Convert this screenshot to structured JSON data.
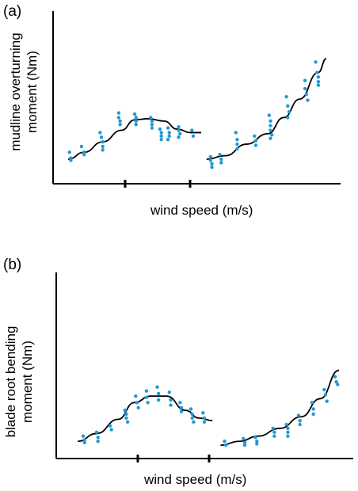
{
  "chart_data": [
    {
      "type": "scatter",
      "panel_label": "(a)",
      "ylabel_lines": [
        "mudline overturning",
        "moment (Nm)"
      ],
      "xlabel": "wind speed (m/s)",
      "axis_ticks": "unlabeled",
      "xlim": [
        0,
        10
      ],
      "ylim": [
        0,
        10
      ],
      "colors": {
        "points": "#1f9ad6",
        "curve": "#000000",
        "axes": "#000000"
      },
      "series": [
        {
          "segment": "below rated",
          "curve_x": [
            0.3,
            0.9,
            1.6,
            2.3,
            2.8,
            3.3,
            3.9,
            4.4,
            4.9,
            5.3
          ],
          "curve_y": [
            1.3,
            1.9,
            2.8,
            3.8,
            4.7,
            4.8,
            4.6,
            3.9,
            3.6,
            3.6
          ],
          "points": [
            [
              0.35,
              1.9
            ],
            [
              0.4,
              1.4
            ],
            [
              0.4,
              1.2
            ],
            [
              0.8,
              2.4
            ],
            [
              0.9,
              1.9
            ],
            [
              0.9,
              1.7
            ],
            [
              1.5,
              3.6
            ],
            [
              1.55,
              3.2
            ],
            [
              1.6,
              2.8
            ],
            [
              1.6,
              2.4
            ],
            [
              1.6,
              2.1
            ],
            [
              2.2,
              5.3
            ],
            [
              2.2,
              4.9
            ],
            [
              2.25,
              4.6
            ],
            [
              2.25,
              4.3
            ],
            [
              2.8,
              5.2
            ],
            [
              2.85,
              4.9
            ],
            [
              2.85,
              4.6
            ],
            [
              2.85,
              4.3
            ],
            [
              3.4,
              4.9
            ],
            [
              3.45,
              4.6
            ],
            [
              3.45,
              4.3
            ],
            [
              3.45,
              4.0
            ],
            [
              3.75,
              3.9
            ],
            [
              3.8,
              3.6
            ],
            [
              3.8,
              3.3
            ],
            [
              3.8,
              3.0
            ],
            [
              4.05,
              4.0
            ],
            [
              4.1,
              3.6
            ],
            [
              4.1,
              3.3
            ],
            [
              4.05,
              3.0
            ],
            [
              4.45,
              4.1
            ],
            [
              4.45,
              3.8
            ],
            [
              4.5,
              3.5
            ],
            [
              4.45,
              3.2
            ],
            [
              4.95,
              3.8
            ],
            [
              5.0,
              3.3
            ]
          ]
        },
        {
          "segment": "above rated",
          "curve_x": [
            5.5,
            6.2,
            7.0,
            7.8,
            8.4,
            9.0,
            9.7,
            10.0
          ],
          "curve_y": [
            1.3,
            1.6,
            2.6,
            3.5,
            4.9,
            6.5,
            8.8,
            10.0
          ],
          "points": [
            [
              5.65,
              1.5
            ],
            [
              5.65,
              1.2
            ],
            [
              5.7,
              0.9
            ],
            [
              5.7,
              0.6
            ],
            [
              6.0,
              1.7
            ],
            [
              6.05,
              1.3
            ],
            [
              6.05,
              1.0
            ],
            [
              6.6,
              3.6
            ],
            [
              6.65,
              3.0
            ],
            [
              6.65,
              2.6
            ],
            [
              6.65,
              2.2
            ],
            [
              7.3,
              3.3
            ],
            [
              7.35,
              2.9
            ],
            [
              7.35,
              2.5
            ],
            [
              7.85,
              5.1
            ],
            [
              7.9,
              4.6
            ],
            [
              7.9,
              4.2
            ],
            [
              7.9,
              3.8
            ],
            [
              7.95,
              3.4
            ],
            [
              7.9,
              3.1
            ],
            [
              8.5,
              6.7
            ],
            [
              8.55,
              5.9
            ],
            [
              8.6,
              5.4
            ],
            [
              8.55,
              4.9
            ],
            [
              9.2,
              8.1
            ],
            [
              9.2,
              7.4
            ],
            [
              9.25,
              6.9
            ],
            [
              9.3,
              6.4
            ],
            [
              9.6,
              9.7
            ],
            [
              9.65,
              8.8
            ],
            [
              9.7,
              8.4
            ],
            [
              9.7,
              8.0
            ],
            [
              9.7,
              7.7
            ]
          ]
        }
      ]
    },
    {
      "type": "scatter",
      "panel_label": "(b)",
      "ylabel_lines": [
        "blade root bending",
        "moment (Nm)"
      ],
      "xlabel": "wind speed (m/s)",
      "axis_ticks": "unlabeled",
      "xlim": [
        0,
        10
      ],
      "ylim": [
        0,
        10
      ],
      "colors": {
        "points": "#1f9ad6",
        "curve": "#000000",
        "axes": "#000000"
      },
      "series": [
        {
          "segment": "below rated",
          "curve_x": [
            0.3,
            1.0,
            1.8,
            2.4,
            3.0,
            3.6,
            4.3,
            4.8,
            5.3
          ],
          "curve_y": [
            0.6,
            1.2,
            2.3,
            3.6,
            4.1,
            4.1,
            3.0,
            2.4,
            2.2
          ],
          "points": [
            [
              0.5,
              1.0
            ],
            [
              0.55,
              0.7
            ],
            [
              0.55,
              0.5
            ],
            [
              1.0,
              1.3
            ],
            [
              1.05,
              0.9
            ],
            [
              1.05,
              0.6
            ],
            [
              1.5,
              1.8
            ],
            [
              1.55,
              1.5
            ],
            [
              2.05,
              3.0
            ],
            [
              2.1,
              2.7
            ],
            [
              2.1,
              2.4
            ],
            [
              2.15,
              2.1
            ],
            [
              2.45,
              4.1
            ],
            [
              2.5,
              3.6
            ],
            [
              2.55,
              3.2
            ],
            [
              2.85,
              4.5
            ],
            [
              2.85,
              4.0
            ],
            [
              2.9,
              3.6
            ],
            [
              3.25,
              4.8
            ],
            [
              3.3,
              4.3
            ],
            [
              3.3,
              3.8
            ],
            [
              3.7,
              4.4
            ],
            [
              3.75,
              3.8
            ],
            [
              3.75,
              3.4
            ],
            [
              4.1,
              3.6
            ],
            [
              4.15,
              3.2
            ],
            [
              4.15,
              2.9
            ],
            [
              4.5,
              3.1
            ],
            [
              4.55,
              2.7
            ],
            [
              4.55,
              2.4
            ],
            [
              4.6,
              2.1
            ],
            [
              4.95,
              2.8
            ],
            [
              5.0,
              2.4
            ],
            [
              5.0,
              2.1
            ]
          ]
        },
        {
          "segment": "above rated",
          "curve_x": [
            5.6,
            6.3,
            7.0,
            7.8,
            8.6,
            9.3,
            10.0
          ],
          "curve_y": [
            0.3,
            0.6,
            1.0,
            1.6,
            2.5,
            3.9,
            6.1
          ],
          "points": [
            [
              5.75,
              0.6
            ],
            [
              5.8,
              0.3
            ],
            [
              6.45,
              0.8
            ],
            [
              6.5,
              0.5
            ],
            [
              6.5,
              0.3
            ],
            [
              6.9,
              0.9
            ],
            [
              6.95,
              0.6
            ],
            [
              6.95,
              0.4
            ],
            [
              7.55,
              1.6
            ],
            [
              7.6,
              1.3
            ],
            [
              7.6,
              1.0
            ],
            [
              8.05,
              1.9
            ],
            [
              8.1,
              1.6
            ],
            [
              8.1,
              1.3
            ],
            [
              8.1,
              1.0
            ],
            [
              8.5,
              2.6
            ],
            [
              8.55,
              2.2
            ],
            [
              8.55,
              1.9
            ],
            [
              9.0,
              3.6
            ],
            [
              9.05,
              3.1
            ],
            [
              9.05,
              2.7
            ],
            [
              9.45,
              4.6
            ],
            [
              9.5,
              4.2
            ],
            [
              9.55,
              3.7
            ],
            [
              9.85,
              5.6
            ],
            [
              9.9,
              5.2
            ],
            [
              9.95,
              5.0
            ]
          ]
        }
      ]
    }
  ]
}
